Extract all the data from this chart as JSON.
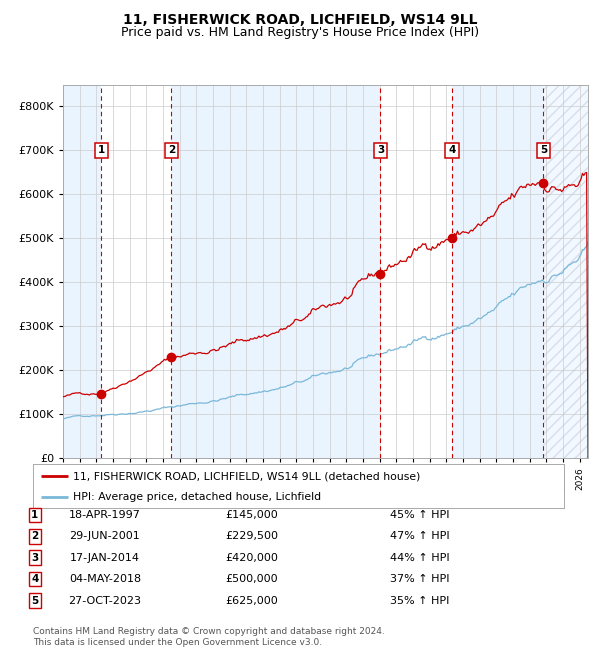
{
  "title": "11, FISHERWICK ROAD, LICHFIELD, WS14 9LL",
  "subtitle": "Price paid vs. HM Land Registry's House Price Index (HPI)",
  "ylim": [
    0,
    850000
  ],
  "yticks": [
    0,
    100000,
    200000,
    300000,
    400000,
    500000,
    600000,
    700000,
    800000
  ],
  "ytick_labels": [
    "£0",
    "£100K",
    "£200K",
    "£300K",
    "£400K",
    "£500K",
    "£600K",
    "£700K",
    "£800K"
  ],
  "xlim_start": 1995.0,
  "xlim_end": 2026.5,
  "sale_dates": [
    1997.3,
    2001.5,
    2014.05,
    2018.34,
    2023.82
  ],
  "sale_prices": [
    145000,
    229500,
    420000,
    500000,
    625000
  ],
  "sale_labels": [
    "1",
    "2",
    "3",
    "4",
    "5"
  ],
  "sale_date_strs": [
    "18-APR-1997",
    "29-JUN-2001",
    "17-JAN-2014",
    "04-MAY-2018",
    "27-OCT-2023"
  ],
  "sale_price_strs": [
    "£145,000",
    "£229,500",
    "£420,000",
    "£500,000",
    "£625,000"
  ],
  "sale_hpi_strs": [
    "45% ↑ HPI",
    "47% ↑ HPI",
    "44% ↑ HPI",
    "37% ↑ HPI",
    "35% ↑ HPI"
  ],
  "hpi_color": "#7ab8d9",
  "price_color": "#cc0000",
  "dot_color": "#cc0000",
  "vline_color": "#cc0000",
  "shading_color": "#ddeeff",
  "grid_color": "#cccccc",
  "background_color": "#ffffff",
  "legend_label_red": "11, FISHERWICK ROAD, LICHFIELD, WS14 9LL (detached house)",
  "legend_label_blue": "HPI: Average price, detached house, Lichfield",
  "footnote": "Contains HM Land Registry data © Crown copyright and database right 2024.\nThis data is licensed under the Open Government Licence v3.0.",
  "title_fontsize": 10,
  "subtitle_fontsize": 9
}
